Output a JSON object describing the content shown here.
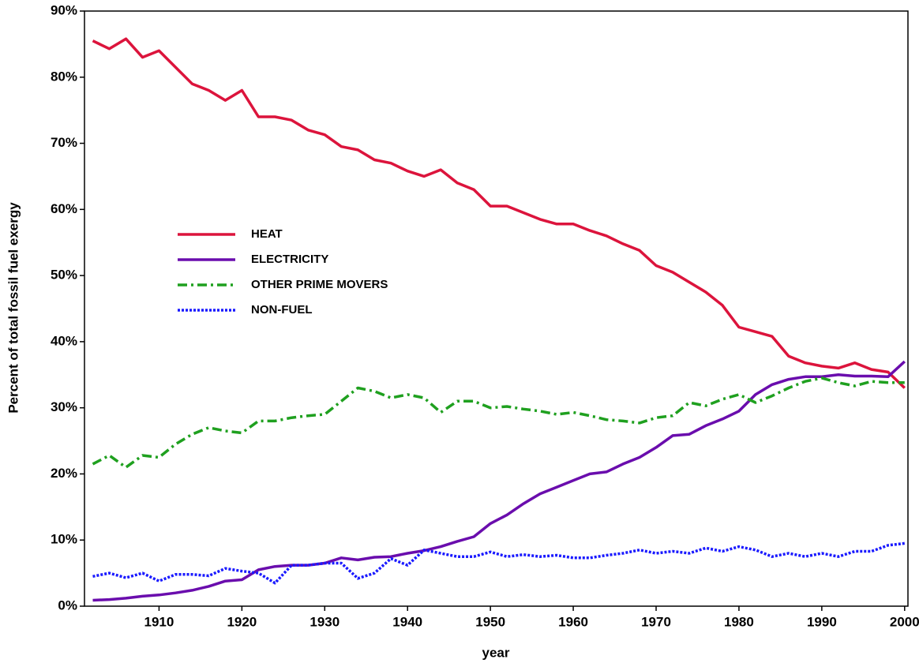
{
  "chart_data": {
    "type": "line",
    "xlabel": "year",
    "ylabel": "Percent of total fossil fuel exergy",
    "x": [
      1902,
      1904,
      1906,
      1908,
      1910,
      1912,
      1914,
      1916,
      1918,
      1920,
      1922,
      1924,
      1926,
      1928,
      1930,
      1932,
      1934,
      1936,
      1938,
      1940,
      1942,
      1944,
      1946,
      1948,
      1950,
      1952,
      1954,
      1956,
      1958,
      1960,
      1962,
      1964,
      1966,
      1968,
      1970,
      1972,
      1974,
      1976,
      1978,
      1980,
      1982,
      1984,
      1986,
      1988,
      1990,
      1992,
      1994,
      1996,
      1998,
      2000
    ],
    "series": [
      {
        "name": "HEAT",
        "color": "#dc143c",
        "dash": "solid",
        "values": [
          85.5,
          84.3,
          85.8,
          83,
          84,
          81.5,
          79,
          78,
          76.5,
          78,
          74,
          74,
          73.5,
          72,
          71.3,
          69.5,
          69,
          67.5,
          67,
          65.8,
          65,
          66,
          64,
          63,
          60.5,
          60.5,
          59.5,
          58.5,
          57.8,
          57.8,
          56.8,
          56,
          54.8,
          53.8,
          51.5,
          50.5,
          49,
          47.5,
          45.5,
          42.2,
          41.5,
          40.8,
          37.8,
          36.8,
          36.3,
          36,
          36.8,
          35.8,
          35.4,
          33
        ]
      },
      {
        "name": "ELECTRICITY",
        "color": "#6a0dad",
        "dash": "solid",
        "values": [
          0.9,
          1,
          1.2,
          1.5,
          1.7,
          2,
          2.4,
          3,
          3.8,
          4,
          5.5,
          6,
          6.2,
          6.2,
          6.5,
          7.3,
          7,
          7.4,
          7.5,
          8,
          8.4,
          9,
          9.8,
          10.5,
          12.5,
          13.8,
          15.5,
          17,
          18,
          19,
          20,
          20.3,
          21.5,
          22.5,
          24,
          25.8,
          26,
          27.3,
          28.3,
          29.5,
          32,
          33.5,
          34.3,
          34.7,
          34.7,
          35,
          34.8,
          34.8,
          34.7,
          37
        ]
      },
      {
        "name": "OTHER PRIME MOVERS",
        "color": "#1fa01f",
        "dash": "dashdot",
        "values": [
          21.5,
          22.8,
          21,
          22.8,
          22.5,
          24.5,
          26,
          27,
          26.5,
          26.2,
          28,
          28,
          28.5,
          28.8,
          29,
          31,
          33,
          32.5,
          31.5,
          32,
          31.5,
          29.3,
          31,
          31,
          30,
          30.2,
          29.8,
          29.5,
          29,
          29.3,
          28.8,
          28.2,
          28,
          27.7,
          28.5,
          28.8,
          30.8,
          30.3,
          31.3,
          32,
          30.8,
          31.8,
          33,
          34,
          34.5,
          33.8,
          33.3,
          34,
          33.8,
          33.8
        ]
      },
      {
        "name": "NON-FUEL",
        "color": "#1a1aff",
        "dash": "dotted",
        "values": [
          4.5,
          5,
          4.3,
          5,
          3.8,
          4.8,
          4.8,
          4.6,
          5.7,
          5.3,
          5,
          3.5,
          6.2,
          6.2,
          6.5,
          6.5,
          4.2,
          5,
          7.2,
          6.2,
          8.5,
          8,
          7.5,
          7.5,
          8.2,
          7.5,
          7.8,
          7.5,
          7.7,
          7.3,
          7.3,
          7.7,
          8,
          8.5,
          8,
          8.3,
          8,
          8.8,
          8.3,
          9,
          8.5,
          7.5,
          8,
          7.5,
          8,
          7.5,
          8.3,
          8.3,
          9.2,
          9.5
        ]
      }
    ],
    "xlim": [
      1901,
      2000.4
    ],
    "xticks": [
      1910,
      1920,
      1930,
      1940,
      1950,
      1960,
      1970,
      1980,
      1990,
      2000
    ],
    "ylim": [
      0,
      90
    ],
    "yticks": [
      {
        "value": 0,
        "label": "0%"
      },
      {
        "value": 10,
        "label": "10%"
      },
      {
        "value": 20,
        "label": "20%"
      },
      {
        "value": 30,
        "label": "30%"
      },
      {
        "value": 40,
        "label": "40%"
      },
      {
        "value": 50,
        "label": "50%"
      },
      {
        "value": 60,
        "label": "60%"
      },
      {
        "value": 70,
        "label": "70%"
      },
      {
        "value": 80,
        "label": "80%"
      },
      {
        "value": 90,
        "label": "90%"
      }
    ],
    "grid": false,
    "legend": "center left"
  }
}
